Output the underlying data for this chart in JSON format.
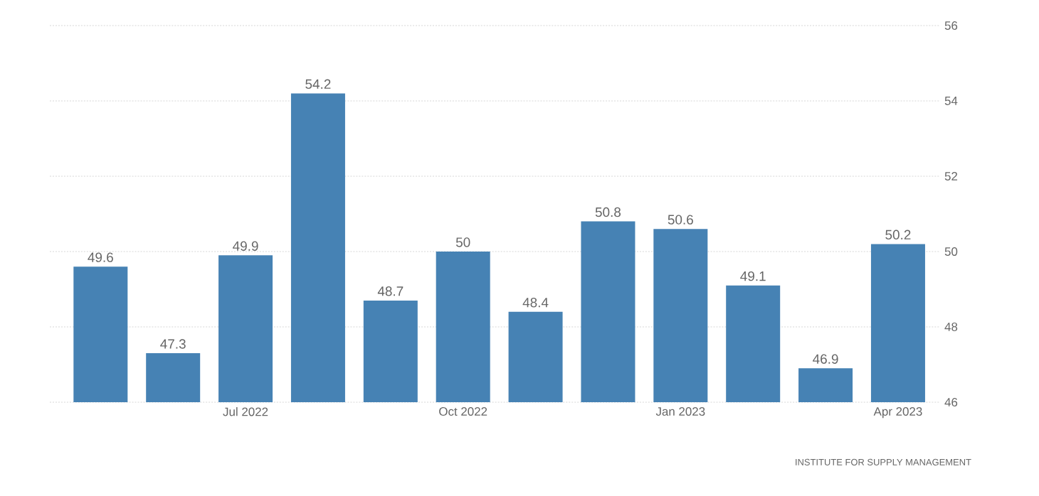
{
  "chart_data": {
    "type": "bar",
    "categories": [
      null,
      null,
      "Jul 2022",
      null,
      null,
      "Oct 2022",
      null,
      null,
      "Jan 2023",
      null,
      null,
      "Apr 2023"
    ],
    "values": [
      49.6,
      47.3,
      49.9,
      54.2,
      48.7,
      50,
      48.4,
      50.8,
      50.6,
      49.1,
      46.9,
      50.2
    ],
    "value_labels": [
      "49.6",
      "47.3",
      "49.9",
      "54.2",
      "48.7",
      "50",
      "48.4",
      "50.8",
      "50.6",
      "49.1",
      "46.9",
      "50.2"
    ],
    "color": "#4682b4",
    "ylim": [
      46,
      56
    ],
    "yticks": [
      46,
      48,
      50,
      52,
      54,
      56
    ],
    "grid": "y",
    "annotations": [
      "INSTITUTE FOR SUPPLY MANAGEMENT"
    ]
  }
}
